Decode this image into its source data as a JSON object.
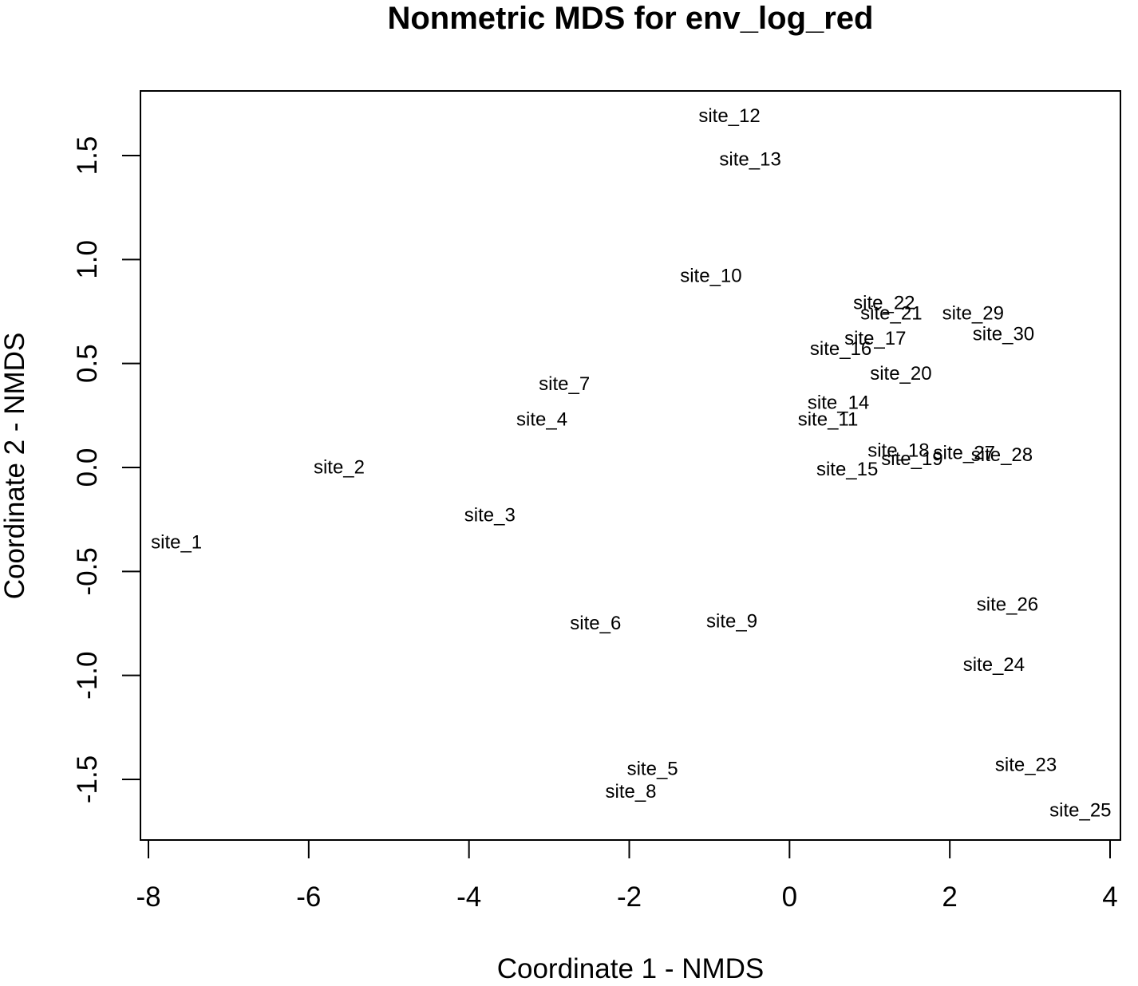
{
  "chart_data": {
    "type": "scatter",
    "title": "Nonmetric MDS for env_log_red",
    "xlabel": "Coordinate 1 - NMDS",
    "ylabel": "Coordinate 2 - NMDS",
    "xlim": [
      -8,
      4
    ],
    "ylim": [
      -1.65,
      1.75
    ],
    "xticks": [
      "-8",
      "-6",
      "-4",
      "-2",
      "0",
      "2",
      "4"
    ],
    "yticks": [
      "-1.5",
      "-1.0",
      "-0.5",
      "0.0",
      "0.5",
      "1.0",
      "1.5"
    ],
    "grid": false,
    "markers": "text labels",
    "points": [
      {
        "label": "site_1",
        "x": -7.65,
        "y": -0.36
      },
      {
        "label": "site_2",
        "x": -5.62,
        "y": 0.0
      },
      {
        "label": "site_3",
        "x": -3.74,
        "y": -0.23
      },
      {
        "label": "site_4",
        "x": -3.09,
        "y": 0.23
      },
      {
        "label": "site_5",
        "x": -1.71,
        "y": -1.45
      },
      {
        "label": "site_6",
        "x": -2.42,
        "y": -0.75
      },
      {
        "label": "site_7",
        "x": -2.81,
        "y": 0.4
      },
      {
        "label": "site_8",
        "x": -1.98,
        "y": -1.56
      },
      {
        "label": "site_9",
        "x": -0.72,
        "y": -0.74
      },
      {
        "label": "site_10",
        "x": -0.98,
        "y": 0.92
      },
      {
        "label": "site_11",
        "x": 0.48,
        "y": 0.23
      },
      {
        "label": "site_12",
        "x": -0.75,
        "y": 1.69
      },
      {
        "label": "site_13",
        "x": -0.49,
        "y": 1.48
      },
      {
        "label": "site_14",
        "x": 0.61,
        "y": 0.31
      },
      {
        "label": "site_15",
        "x": 0.72,
        "y": -0.01
      },
      {
        "label": "site_16",
        "x": 0.64,
        "y": 0.57
      },
      {
        "label": "site_17",
        "x": 1.07,
        "y": 0.62
      },
      {
        "label": "site_18",
        "x": 1.36,
        "y": 0.08
      },
      {
        "label": "site_19",
        "x": 1.53,
        "y": 0.04
      },
      {
        "label": "site_20",
        "x": 1.39,
        "y": 0.45
      },
      {
        "label": "site_21",
        "x": 1.27,
        "y": 0.74
      },
      {
        "label": "site_22",
        "x": 1.18,
        "y": 0.79
      },
      {
        "label": "site_23",
        "x": 2.95,
        "y": -1.43
      },
      {
        "label": "site_24",
        "x": 2.55,
        "y": -0.95
      },
      {
        "label": "site_25",
        "x": 3.63,
        "y": -1.65
      },
      {
        "label": "site_26",
        "x": 2.72,
        "y": -0.66
      },
      {
        "label": "site_27",
        "x": 2.18,
        "y": 0.07
      },
      {
        "label": "site_28",
        "x": 2.65,
        "y": 0.06
      },
      {
        "label": "site_29",
        "x": 2.29,
        "y": 0.74
      },
      {
        "label": "site_30",
        "x": 2.67,
        "y": 0.64
      }
    ]
  }
}
